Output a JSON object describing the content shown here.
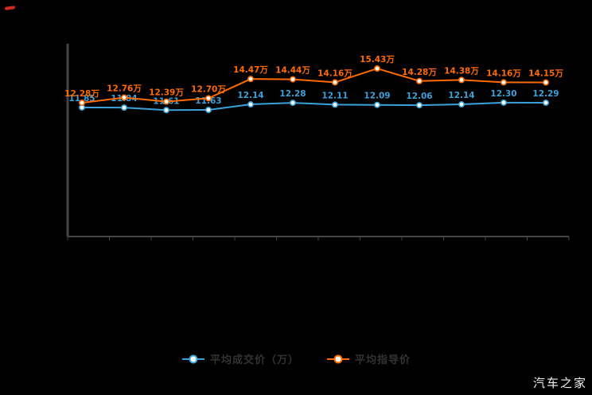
{
  "watermark": {
    "text": "汽车之家"
  },
  "legend": {
    "items": [
      {
        "label": "平均成交价（万）",
        "color": "#3ba1da"
      },
      {
        "label": "平均指导价",
        "color": "#ff6a00"
      }
    ]
  },
  "chart_data": {
    "type": "line",
    "title": "",
    "xlabel": "",
    "ylabel": "",
    "ylim": [
      0,
      17.7
    ],
    "grid": false,
    "legend_position": "bottom",
    "num_points": 12,
    "series": [
      {
        "name": "平均成交价（万）",
        "color": "#3ba1da",
        "values": [
          11.85,
          11.84,
          11.61,
          11.63,
          12.14,
          12.28,
          12.11,
          12.09,
          12.06,
          12.14,
          12.3,
          12.29
        ],
        "labels": [
          "11.85",
          "11.84",
          "11.61",
          "11.63",
          "12.14",
          "12.28",
          "12.11",
          "12.09",
          "12.06",
          "12.14",
          "12.30",
          "12.29"
        ]
      },
      {
        "name": "平均指导价",
        "color": "#ff6a00",
        "values": [
          12.28,
          12.76,
          12.39,
          12.7,
          14.47,
          14.44,
          14.16,
          15.43,
          14.28,
          14.38,
          14.16,
          14.15
        ],
        "labels": [
          "12.28万",
          "12.76万",
          "12.39万",
          "12.70万",
          "14.47万",
          "14.44万",
          "14.16万",
          "15.43万",
          "14.28万",
          "14.38万",
          "14.16万",
          "14.15万"
        ]
      }
    ]
  },
  "axis_color": "#454545"
}
